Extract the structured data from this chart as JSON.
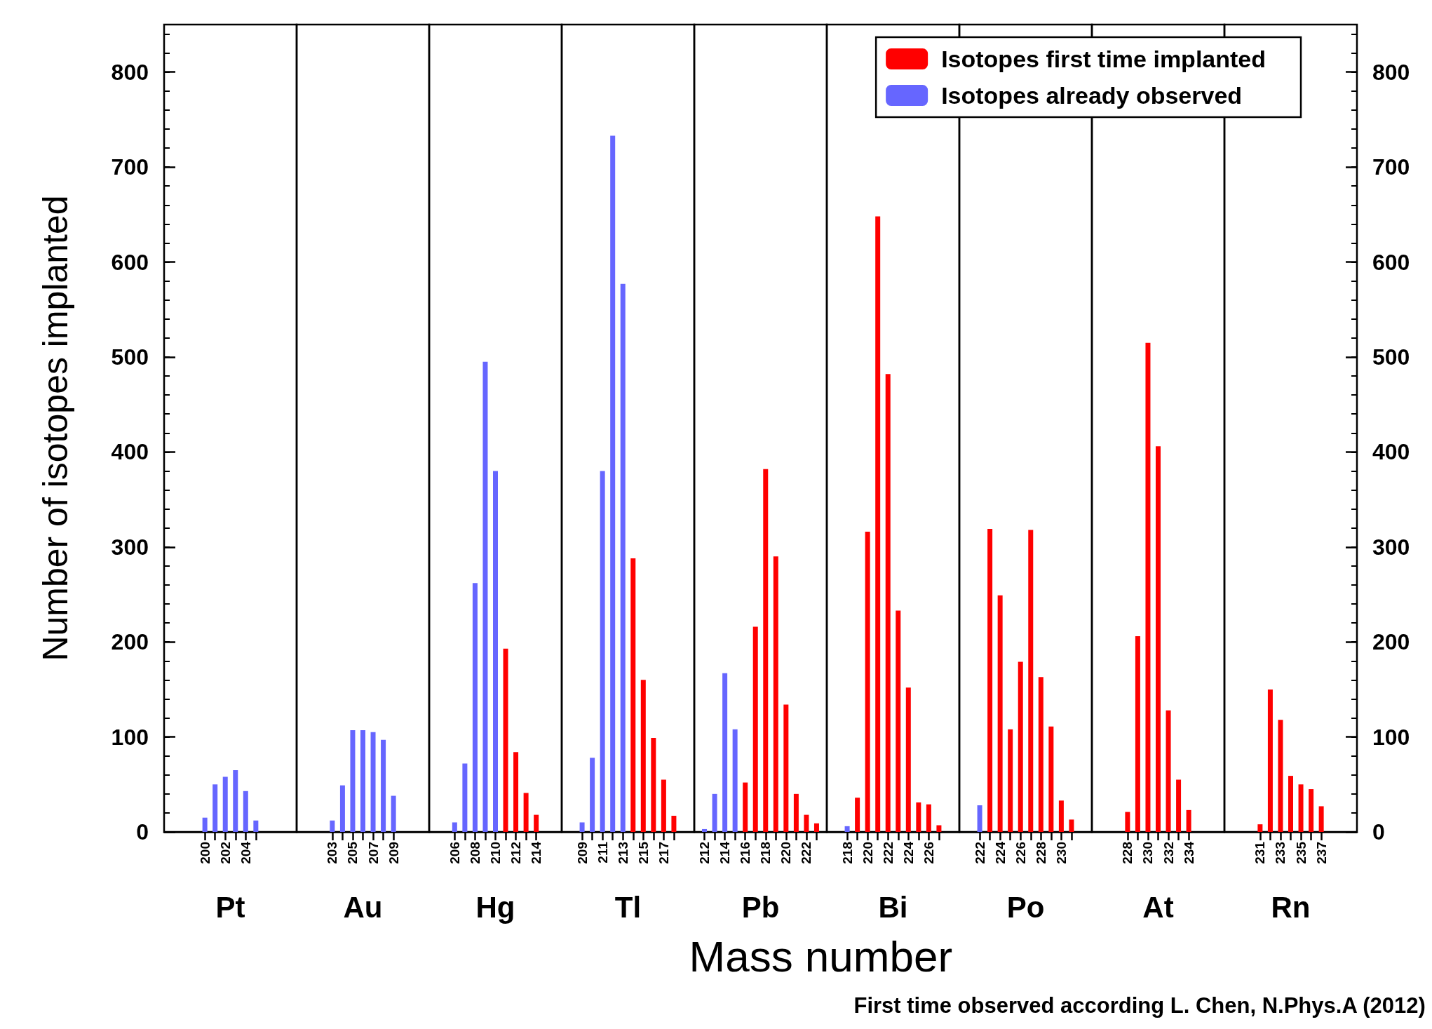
{
  "chart_data": [
    {
      "type": "bar",
      "stacked": true,
      "xlabel": "Pt",
      "ylabel": "Number of isotopes implanted",
      "ylim": [
        0,
        850
      ],
      "yticks": [
        0,
        100,
        200,
        300,
        400,
        500,
        600,
        700,
        800
      ],
      "categories": [
        "200",
        null,
        "202",
        null,
        "204",
        null
      ],
      "series": [
        {
          "color": "#ff0000",
          "values": [
            null,
            null,
            null,
            null,
            null,
            null
          ]
        },
        {
          "color": "#6666ff",
          "values": [
            15,
            50,
            58,
            65,
            43,
            12
          ]
        }
      ]
    },
    {
      "type": "bar",
      "stacked": true,
      "xlabel": "Au",
      "tick_labels": "x",
      "ylim": [
        0,
        850
      ],
      "yticks": [
        0,
        100,
        200,
        300,
        400,
        500,
        600,
        700,
        800
      ],
      "categories": [
        "203",
        null,
        "205",
        null,
        "207",
        null,
        "209"
      ],
      "series": [
        {
          "color": "#ff0000",
          "values": [
            null,
            null,
            null,
            null,
            null,
            null,
            null
          ]
        },
        {
          "color": "#6666ff",
          "values": [
            12,
            49,
            107,
            107,
            105,
            97,
            38
          ]
        }
      ]
    },
    {
      "type": "bar",
      "stacked": true,
      "xlabel": "Hg",
      "tick_labels": "x",
      "ylim": [
        0,
        850
      ],
      "yticks": [
        0,
        100,
        200,
        300,
        400,
        500,
        600,
        700,
        800
      ],
      "categories": [
        "206",
        null,
        "208",
        null,
        "210",
        null,
        "212",
        null,
        "214"
      ],
      "series": [
        {
          "color": "#ff0000",
          "values": [
            null,
            null,
            null,
            null,
            null,
            193,
            84,
            41,
            18
          ]
        },
        {
          "color": "#6666ff",
          "values": [
            10,
            72,
            262,
            495,
            380,
            null,
            null,
            null,
            null
          ]
        }
      ]
    },
    {
      "type": "bar",
      "stacked": true,
      "xlabel": "Tl",
      "tick_labels": "x",
      "ylim": [
        0,
        850
      ],
      "yticks": [
        0,
        100,
        200,
        300,
        400,
        500,
        600,
        700,
        800
      ],
      "categories": [
        "209",
        null,
        "211",
        null,
        "213",
        null,
        "215",
        null,
        "217",
        null
      ],
      "series": [
        {
          "color": "#ff0000",
          "values": [
            null,
            null,
            null,
            null,
            null,
            288,
            160,
            99,
            55,
            17
          ]
        },
        {
          "color": "#6666ff",
          "values": [
            10,
            78,
            380,
            733,
            577,
            null,
            null,
            null,
            null,
            null
          ]
        }
      ]
    },
    {
      "type": "bar",
      "stacked": true,
      "xlabel": "Pb",
      "tick_labels": "x",
      "ylim": [
        0,
        850
      ],
      "yticks": [
        0,
        100,
        200,
        300,
        400,
        500,
        600,
        700,
        800
      ],
      "annotations": [
        "Mass number"
      ],
      "categories": [
        "212",
        null,
        "214",
        null,
        "216",
        null,
        "218",
        null,
        "220",
        null,
        "222",
        null
      ],
      "series": [
        {
          "color": "#ff0000",
          "values": [
            null,
            null,
            null,
            null,
            52,
            216,
            382,
            290,
            134,
            40,
            18,
            9
          ]
        },
        {
          "color": "#6666ff",
          "values": [
            3,
            40,
            167,
            108,
            null,
            null,
            null,
            null,
            null,
            null,
            null,
            null
          ]
        }
      ]
    },
    {
      "type": "bar",
      "stacked": true,
      "xlabel": "Bi",
      "tick_labels": "x",
      "ylim": [
        0,
        850
      ],
      "yticks": [
        0,
        100,
        200,
        300,
        400,
        500,
        600,
        700,
        800
      ],
      "categories": [
        "218",
        null,
        "220",
        null,
        "222",
        null,
        "224",
        null,
        "226",
        null
      ],
      "series": [
        {
          "color": "#ff0000",
          "values": [
            null,
            36,
            316,
            648,
            482,
            233,
            152,
            31,
            29,
            7
          ]
        },
        {
          "color": "#6666ff",
          "values": [
            6,
            null,
            null,
            null,
            null,
            null,
            null,
            null,
            null,
            null
          ]
        }
      ]
    },
    {
      "type": "bar",
      "stacked": true,
      "xlabel": "Po",
      "tick_labels": "x",
      "legend": "top right",
      "ylim": [
        0,
        850
      ],
      "yticks": [
        0,
        100,
        200,
        300,
        400,
        500,
        600,
        700,
        800
      ],
      "categories": [
        "222",
        null,
        "224",
        null,
        "226",
        null,
        "228",
        null,
        "230",
        null
      ],
      "series": [
        {
          "name": "Isotopes first time implanted",
          "color": "#ff0000",
          "values": [
            null,
            319,
            249,
            108,
            179,
            318,
            163,
            111,
            33,
            13
          ]
        },
        {
          "name": "Isotopes already observed",
          "color": "#6666ff",
          "values": [
            28,
            null,
            null,
            null,
            null,
            null,
            null,
            null,
            null,
            null
          ]
        }
      ]
    },
    {
      "type": "bar",
      "stacked": true,
      "xlabel": "At",
      "tick_labels": "x",
      "ylim": [
        0,
        850
      ],
      "yticks": [
        0,
        100,
        200,
        300,
        400,
        500,
        600,
        700,
        800
      ],
      "categories": [
        "228",
        null,
        "230",
        null,
        "232",
        null,
        "234"
      ],
      "series": [
        {
          "color": "#ff0000",
          "values": [
            21,
            206,
            515,
            406,
            128,
            55,
            23
          ]
        }
      ]
    },
    {
      "type": "bar",
      "stacked": true,
      "xlabel": "Rn",
      "ylim": [
        0,
        850
      ],
      "yticks": [
        0,
        100,
        200,
        300,
        400,
        500,
        600,
        700,
        800
      ],
      "annotations": [
        "First time observed according L. Chen, N.Phys.A (2012)"
      ],
      "categories": [
        "231",
        null,
        "233",
        null,
        "235",
        null,
        "237"
      ],
      "series": [
        {
          "color": "#ff0000",
          "values": [
            8,
            150,
            118,
            59,
            50,
            45,
            27
          ]
        }
      ]
    }
  ]
}
